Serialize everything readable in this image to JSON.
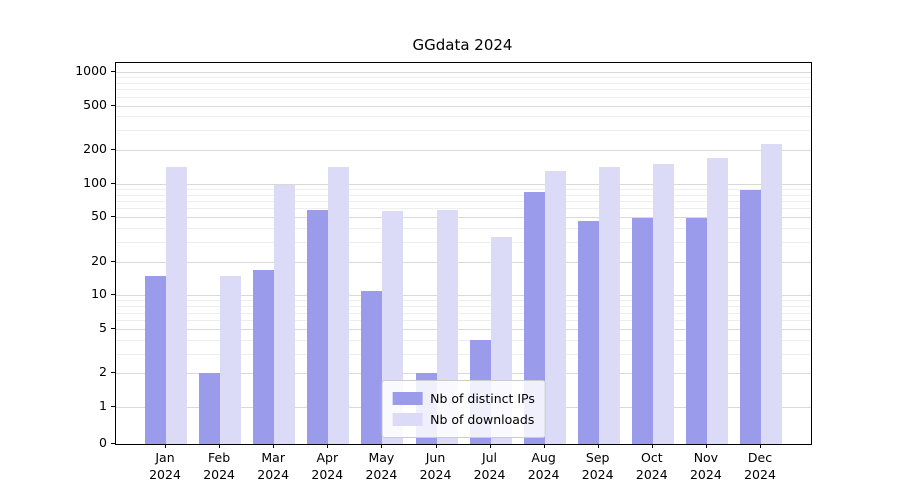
{
  "chart_data": {
    "type": "bar",
    "title": "GGdata 2024",
    "scale": "symlog",
    "grid": "horizontal, major and log-minor lines",
    "legend_position": "lower center",
    "categories": [
      "Jan 2024",
      "Feb 2024",
      "Mar 2024",
      "Apr 2024",
      "May 2024",
      "Jun 2024",
      "Jul 2024",
      "Aug 2024",
      "Sep 2024",
      "Oct 2024",
      "Nov 2024",
      "Dec 2024"
    ],
    "series": [
      {
        "name": "Nb of distinct IPs",
        "color": "#9b9bec",
        "values": [
          15,
          2,
          17,
          58,
          11,
          2,
          4,
          85,
          46,
          49,
          49,
          88
        ]
      },
      {
        "name": "Nb of downloads",
        "color": "#dbdbf8",
        "values": [
          140,
          15,
          97,
          140,
          57,
          58,
          33,
          130,
          140,
          150,
          170,
          225
        ]
      }
    ],
    "y_ticks": [
      0,
      1,
      2,
      5,
      10,
      20,
      50,
      100,
      200,
      500,
      1000
    ],
    "ylim": [
      0,
      1200
    ],
    "xlabel": "",
    "ylabel": ""
  }
}
